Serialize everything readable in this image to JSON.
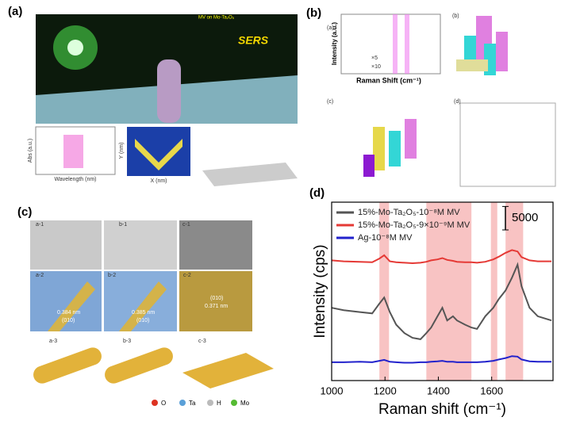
{
  "figure": {
    "panel_labels": [
      "(a)",
      "(b)",
      "(c)",
      "(d)"
    ],
    "a": {
      "sers": "SERS",
      "inset": "MV on Mo-Ta₂O₅",
      "xlabel_1": "Wavelength (nm)",
      "ylabel_1": "Abs (a.u.)",
      "xlabel_2": "X (nm)",
      "ylabel_2": "Y (nm)"
    },
    "b": {
      "xlabel": "Raman Shift (cm⁻¹)",
      "ylabel": "Intensity (a.u.)",
      "mult_1": "×5",
      "mult_2": "×10",
      "sub": [
        "(a)",
        "(b)",
        "(c)",
        "(d)"
      ]
    },
    "c": {
      "sub": [
        "a-1",
        "b-1",
        "c-1",
        "a-2",
        "b-2",
        "c-2",
        "a-3",
        "b-3",
        "c-3"
      ],
      "d1": "0.384 nm",
      "p1": "(010)",
      "d2": "0.385 nm",
      "p2": "(010)",
      "p3": "(010)",
      "d3": "0.371 nm",
      "legend": [
        "O",
        "Ta",
        "H",
        "Mo"
      ]
    }
  },
  "chart_data": {
    "type": "line",
    "xlabel": "Raman shift (cm⁻¹)",
    "ylabel": "Intensity (cps)",
    "x": [
      1000,
      1045,
      1106,
      1152,
      1179,
      1197,
      1218,
      1242,
      1273,
      1303,
      1333,
      1355,
      1373,
      1397,
      1415,
      1433,
      1455,
      1470,
      1500,
      1524,
      1545,
      1576,
      1606,
      1627,
      1652,
      1676,
      1697,
      1712,
      1742,
      1773,
      1824
    ],
    "series": [
      {
        "name": "15%-Mo-Ta₂O₅-10⁻⁸M MV",
        "color": "#555555",
        "values": [
          15500,
          15000,
          14600,
          14300,
          16400,
          17700,
          14600,
          11900,
          10100,
          9100,
          8800,
          10100,
          11300,
          13700,
          15500,
          12800,
          13700,
          12800,
          11900,
          11300,
          11000,
          13700,
          15500,
          17400,
          19200,
          21900,
          24700,
          20100,
          15500,
          13700,
          12800
        ]
      },
      {
        "name": "15%-Mo-Ta₂O₅-9×10⁻⁹M MV",
        "color": "#e53935",
        "values": [
          25600,
          25400,
          25300,
          25200,
          26000,
          26700,
          25400,
          25200,
          25100,
          25000,
          25100,
          25300,
          25600,
          25800,
          26100,
          25700,
          25500,
          25300,
          25200,
          25200,
          25100,
          25300,
          25800,
          26400,
          27200,
          27800,
          27500,
          26300,
          25600,
          25400,
          25400
        ]
      },
      {
        "name": "Ag-10⁻⁸M MV",
        "color": "#2222cc",
        "values": [
          3900,
          3900,
          4000,
          3900,
          4200,
          4400,
          4000,
          3900,
          3800,
          3800,
          3900,
          3900,
          4000,
          4100,
          4200,
          4000,
          4000,
          3900,
          3900,
          3900,
          3900,
          4000,
          4200,
          4500,
          4800,
          5200,
          5100,
          4500,
          4100,
          4000,
          4000
        ]
      }
    ],
    "highlight_ranges": [
      [
        1179,
        1215
      ],
      [
        1355,
        1524
      ],
      [
        1597,
        1621
      ],
      [
        1652,
        1718
      ]
    ],
    "highlight_color": "#f7b8b8",
    "scale_bar": 5000,
    "xlim": [
      1000,
      1830
    ],
    "xticks": [
      1000,
      1200,
      1400,
      1600
    ],
    "ylim": [
      0,
      38000
    ]
  }
}
